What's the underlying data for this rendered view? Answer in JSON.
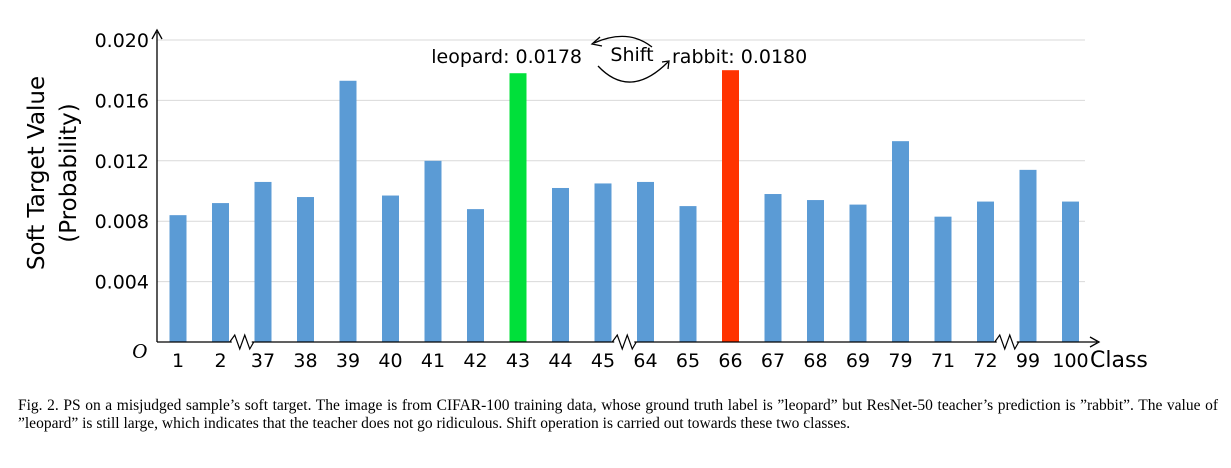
{
  "chart_data": {
    "type": "bar",
    "xlabel": "Class",
    "ylabel_line1": "Soft Target Value",
    "ylabel_line2": "(Probability)",
    "origin_label": "O",
    "ylim": [
      0,
      0.02
    ],
    "yticks": [
      "0.004",
      "0.008",
      "0.012",
      "0.016",
      "0.020"
    ],
    "grid": true,
    "categories": [
      "1",
      "2",
      "37",
      "38",
      "39",
      "40",
      "41",
      "42",
      "43",
      "44",
      "45",
      "64",
      "65",
      "66",
      "67",
      "68",
      "69",
      "79",
      "71",
      "72",
      "99",
      "100"
    ],
    "values": [
      0.0084,
      0.0092,
      0.0106,
      0.0096,
      0.0173,
      0.0097,
      0.012,
      0.0088,
      0.0178,
      0.0102,
      0.0105,
      0.0106,
      0.009,
      0.018,
      0.0098,
      0.0094,
      0.0091,
      0.0133,
      0.0083,
      0.0093,
      0.0114,
      0.0093
    ],
    "colors": {
      "default": "#5b9bd5",
      "43": "#00e03a",
      "66": "#ff3300"
    },
    "axis_breaks_after": [
      "2",
      "45",
      "72"
    ],
    "annotations": {
      "leopard": "leopard: 0.0178",
      "rabbit": "rabbit: 0.0180",
      "shift": "Shift"
    }
  },
  "caption": "Fig. 2.  PS on a misjudged sample’s soft target. The image is from CIFAR-100 training data, whose ground truth label is ”leopard” but ResNet-50 teacher’s prediction is ”rabbit”. The value of ”leopard” is still large, which indicates that the teacher does not go ridiculous. Shift operation is carried out towards these two classes."
}
